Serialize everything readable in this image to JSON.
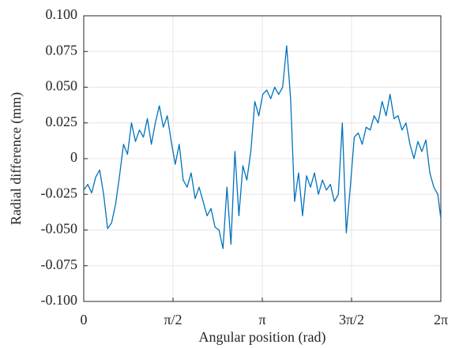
{
  "chart_data": {
    "type": "line",
    "x_label": "Angular position (rad)",
    "y_label": "Radial difference (mm)",
    "xlim": [
      0,
      6.2832
    ],
    "ylim": [
      -0.1,
      0.1
    ],
    "xticks": [
      {
        "value": 0,
        "label": "0"
      },
      {
        "value": 1.5708,
        "label": "π/2"
      },
      {
        "value": 3.1416,
        "label": "π"
      },
      {
        "value": 4.7124,
        "label": "3π/2"
      },
      {
        "value": 6.2832,
        "label": "2π"
      }
    ],
    "yticks": [
      {
        "value": 0.1,
        "label": "0.100"
      },
      {
        "value": 0.075,
        "label": "0.075"
      },
      {
        "value": 0.05,
        "label": "0.050"
      },
      {
        "value": 0.025,
        "label": "0.025"
      },
      0,
      {
        "value": -0.025,
        "label": "-0.025"
      },
      {
        "value": -0.05,
        "label": "-0.050"
      },
      {
        "value": -0.075,
        "label": "-0.075"
      },
      {
        "value": -0.1,
        "label": "-0.100"
      }
    ],
    "grid": true,
    "color": "#0072bd",
    "x": [
      0,
      0.07,
      0.14,
      0.21,
      0.28,
      0.35,
      0.42,
      0.49,
      0.56,
      0.63,
      0.7,
      0.77,
      0.84,
      0.91,
      0.98,
      1.05,
      1.12,
      1.19,
      1.26,
      1.33,
      1.4,
      1.47,
      1.54,
      1.61,
      1.68,
      1.75,
      1.82,
      1.89,
      1.96,
      2.03,
      2.1,
      2.17,
      2.24,
      2.31,
      2.38,
      2.45,
      2.52,
      2.59,
      2.66,
      2.73,
      2.8,
      2.87,
      2.94,
      3.01,
      3.08,
      3.15,
      3.22,
      3.29,
      3.36,
      3.43,
      3.5,
      3.57,
      3.64,
      3.71,
      3.78,
      3.85,
      3.92,
      3.99,
      4.06,
      4.13,
      4.2,
      4.27,
      4.34,
      4.41,
      4.48,
      4.55,
      4.62,
      4.69,
      4.76,
      4.83,
      4.9,
      4.97,
      5.04,
      5.11,
      5.18,
      5.25,
      5.32,
      5.39,
      5.46,
      5.53,
      5.6,
      5.67,
      5.74,
      5.81,
      5.88,
      5.95,
      6.02,
      6.09,
      6.16,
      6.23,
      6.28
    ],
    "values": [
      -0.022,
      -0.018,
      -0.024,
      -0.013,
      -0.008,
      -0.025,
      -0.049,
      -0.045,
      -0.032,
      -0.012,
      0.01,
      0.003,
      0.025,
      0.012,
      0.02,
      0.015,
      0.028,
      0.01,
      0.025,
      0.037,
      0.022,
      0.03,
      0.012,
      -0.004,
      0.01,
      -0.015,
      -0.02,
      -0.01,
      -0.028,
      -0.02,
      -0.03,
      -0.04,
      -0.035,
      -0.048,
      -0.05,
      -0.063,
      -0.02,
      -0.06,
      0.005,
      -0.04,
      -0.005,
      -0.015,
      0.005,
      0.04,
      0.03,
      0.045,
      0.048,
      0.042,
      0.05,
      0.045,
      0.05,
      0.079,
      0.042,
      -0.03,
      -0.01,
      -0.04,
      -0.012,
      -0.02,
      -0.01,
      -0.025,
      -0.015,
      -0.022,
      -0.018,
      -0.03,
      -0.025,
      0.025,
      -0.052,
      -0.02,
      0.015,
      0.018,
      0.01,
      0.022,
      0.02,
      0.03,
      0.025,
      0.04,
      0.03,
      0.045,
      0.028,
      0.03,
      0.02,
      0.025,
      0.01,
      0.0,
      0.012,
      0.005,
      0.013,
      -0.01,
      -0.02,
      -0.025,
      -0.041
    ]
  }
}
